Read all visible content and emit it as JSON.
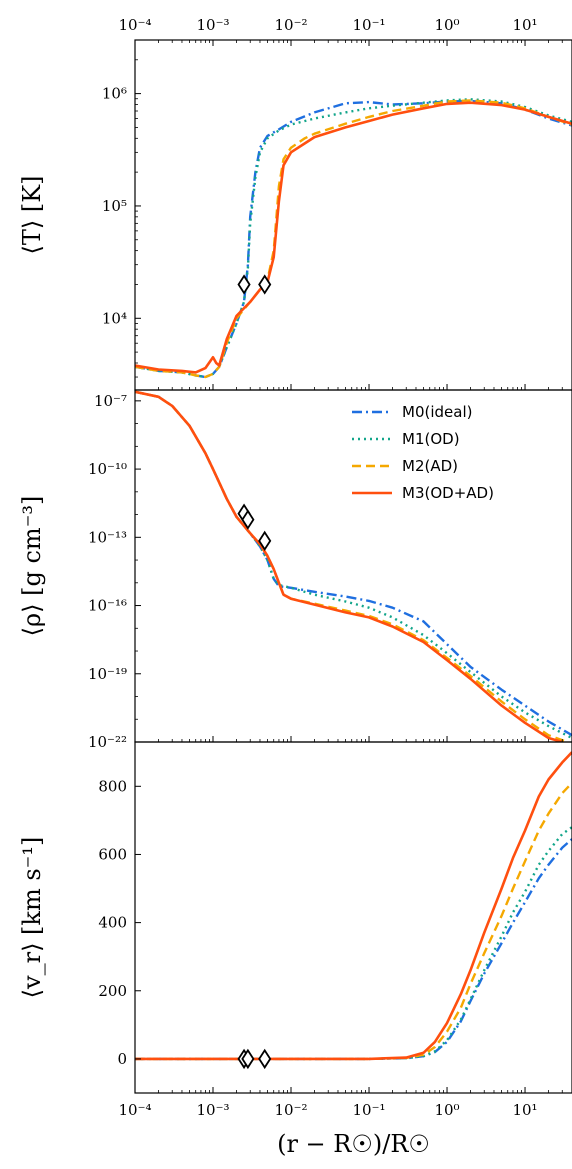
{
  "figure": {
    "xlabel": "(r − R☉)/R☉",
    "legend": {
      "placement": "upper-right of middle panel",
      "entries": [
        "M0(ideal)",
        "M1(OD)",
        "M2(AD)",
        "M3(OD+AD)"
      ]
    }
  },
  "chart_data": [
    {
      "type": "line",
      "panel": "temperature",
      "ylabel": "⟨T⟩ [K]",
      "xscale": "log",
      "yscale": "log",
      "xlim": [
        0.0001,
        40
      ],
      "ylim": [
        2300,
        3000000
      ],
      "xticks": [
        "10⁻⁴",
        "10⁻³",
        "10⁻²",
        "10⁻¹",
        "10⁰",
        "10¹"
      ],
      "yticks": [
        "10⁴",
        "10⁵",
        "10⁶"
      ],
      "series": [
        {
          "name": "M0(ideal)",
          "color": "#1f6fe0",
          "style": "dashdot",
          "x": [
            0.0001,
            0.0002,
            0.0004,
            0.0006,
            0.0008,
            0.001,
            0.0012,
            0.0015,
            0.002,
            0.0025,
            0.0028,
            0.003,
            0.0035,
            0.004,
            0.005,
            0.007,
            0.01,
            0.02,
            0.05,
            0.1,
            0.2,
            0.5,
            1,
            2,
            5,
            10,
            20,
            40
          ],
          "y": [
            3700,
            3400,
            3300,
            3100,
            3000,
            3200,
            3700,
            5500,
            9000,
            14000,
            30000,
            80000,
            200000,
            330000,
            420000,
            480000,
            560000,
            680000,
            820000,
            840000,
            800000,
            820000,
            850000,
            860000,
            820000,
            720000,
            600000,
            520000
          ]
        },
        {
          "name": "M1(OD)",
          "color": "#12a58a",
          "style": "dotted",
          "x": [
            0.0001,
            0.0002,
            0.0004,
            0.0006,
            0.0008,
            0.001,
            0.0012,
            0.0015,
            0.002,
            0.0025,
            0.0028,
            0.003,
            0.0035,
            0.004,
            0.005,
            0.007,
            0.01,
            0.02,
            0.05,
            0.1,
            0.2,
            0.5,
            1,
            2,
            5,
            10,
            20,
            40
          ],
          "y": [
            3700,
            3400,
            3300,
            3100,
            3000,
            3200,
            3700,
            5500,
            9000,
            14000,
            28000,
            70000,
            180000,
            300000,
            400000,
            470000,
            530000,
            600000,
            680000,
            740000,
            780000,
            830000,
            870000,
            890000,
            850000,
            760000,
            640000,
            560000
          ]
        },
        {
          "name": "M2(AD)",
          "color": "#f5a800",
          "style": "dashed",
          "x": [
            0.0001,
            0.0002,
            0.0004,
            0.0006,
            0.0008,
            0.001,
            0.0012,
            0.0015,
            0.002,
            0.003,
            0.004,
            0.005,
            0.006,
            0.007,
            0.008,
            0.01,
            0.015,
            0.02,
            0.05,
            0.1,
            0.2,
            0.5,
            1,
            2,
            5,
            10,
            20,
            40
          ],
          "y": [
            3700,
            3400,
            3300,
            3100,
            3000,
            3200,
            3700,
            6000,
            10000,
            14000,
            18000,
            22000,
            40000,
            150000,
            260000,
            330000,
            400000,
            440000,
            540000,
            620000,
            700000,
            780000,
            850000,
            870000,
            830000,
            740000,
            620000,
            530000
          ]
        },
        {
          "name": "M3(OD+AD)",
          "color": "#ff4f0f",
          "style": "solid",
          "x": [
            0.0001,
            0.0002,
            0.0004,
            0.0006,
            0.0008,
            0.001,
            0.0011,
            0.0012,
            0.0015,
            0.002,
            0.003,
            0.004,
            0.005,
            0.006,
            0.007,
            0.008,
            0.01,
            0.015,
            0.02,
            0.05,
            0.1,
            0.2,
            0.5,
            1,
            2,
            5,
            10,
            20,
            40
          ],
          "y": [
            3800,
            3500,
            3400,
            3300,
            3600,
            4500,
            4000,
            3800,
            6500,
            10500,
            14000,
            18000,
            21000,
            35000,
            110000,
            230000,
            300000,
            360000,
            410000,
            500000,
            570000,
            650000,
            740000,
            810000,
            830000,
            790000,
            720000,
            620000,
            540000
          ]
        }
      ],
      "markers": {
        "shape": "diamond",
        "x": [
          0.0025,
          0.0046
        ],
        "y": [
          20000,
          20000
        ]
      }
    },
    {
      "type": "line",
      "panel": "density",
      "ylabel": "⟨ρ⟩ [g cm⁻³]",
      "xscale": "log",
      "yscale": "log",
      "xlim": [
        0.0001,
        40
      ],
      "ylim": [
        1e-22,
        3e-07
      ],
      "yticks": [
        "10⁻⁷",
        "10⁻¹⁰",
        "10⁻¹³",
        "10⁻¹⁶",
        "10⁻¹⁹",
        "10⁻²²"
      ],
      "series": [
        {
          "name": "M0(ideal)",
          "color": "#1f6fe0",
          "style": "dashdot",
          "x": [
            0.0001,
            0.0002,
            0.0003,
            0.0005,
            0.0008,
            0.001,
            0.0015,
            0.002,
            0.003,
            0.004,
            0.005,
            0.006,
            0.007,
            0.01,
            0.02,
            0.05,
            0.1,
            0.2,
            0.5,
            1,
            2,
            5,
            10,
            20,
            40
          ],
          "y": [
            2.5e-07,
            1.5e-07,
            6e-08,
            8e-09,
            5e-10,
            1e-10,
            5e-12,
            8e-13,
            1.5e-13,
            4e-14,
            1e-14,
            1.5e-15,
            7e-16,
            6e-16,
            4e-16,
            2.5e-16,
            1.6e-16,
            8e-17,
            2e-17,
            2e-18,
            2e-19,
            2e-20,
            4e-21,
            8e-22,
            2e-22
          ]
        },
        {
          "name": "M1(OD)",
          "color": "#12a58a",
          "style": "dotted",
          "x": [
            0.0001,
            0.0002,
            0.0003,
            0.0005,
            0.0008,
            0.001,
            0.0015,
            0.002,
            0.003,
            0.004,
            0.005,
            0.006,
            0.007,
            0.01,
            0.02,
            0.05,
            0.1,
            0.2,
            0.5,
            1,
            2,
            5,
            10,
            20,
            40
          ],
          "y": [
            2.5e-07,
            1.5e-07,
            6e-08,
            8e-09,
            5e-10,
            1e-10,
            5e-12,
            8e-13,
            1.5e-13,
            4e-14,
            1e-14,
            1.5e-15,
            8e-16,
            6e-16,
            3e-16,
            1.5e-16,
            8e-17,
            3e-17,
            5e-18,
            8e-19,
            1.2e-19,
            1e-20,
            2e-21,
            5e-22,
            1.5e-22
          ]
        },
        {
          "name": "M2(AD)",
          "color": "#f5a800",
          "style": "dashed",
          "x": [
            0.0001,
            0.0002,
            0.0003,
            0.0005,
            0.0008,
            0.001,
            0.0015,
            0.002,
            0.003,
            0.004,
            0.005,
            0.006,
            0.007,
            0.008,
            0.01,
            0.02,
            0.05,
            0.1,
            0.2,
            0.5,
            1,
            2,
            5,
            10,
            20,
            35
          ],
          "y": [
            2.5e-07,
            1.5e-07,
            6e-08,
            8e-09,
            5e-10,
            1e-10,
            5e-12,
            8e-13,
            1.5e-13,
            5e-14,
            1.5e-14,
            4e-15,
            1e-15,
            3e-16,
            2e-16,
            1.2e-16,
            6e-17,
            3.5e-17,
            1.5e-17,
            3e-18,
            5e-19,
            8e-20,
            6e-21,
            1e-21,
            2e-22,
            1e-22
          ]
        },
        {
          "name": "M3(OD+AD)",
          "color": "#ff4f0f",
          "style": "solid",
          "x": [
            0.0001,
            0.0002,
            0.0003,
            0.0005,
            0.0008,
            0.001,
            0.0015,
            0.002,
            0.003,
            0.004,
            0.005,
            0.006,
            0.007,
            0.008,
            0.01,
            0.02,
            0.05,
            0.1,
            0.2,
            0.5,
            1,
            2,
            5,
            10,
            20,
            30
          ],
          "y": [
            2.5e-07,
            1.5e-07,
            6e-08,
            8e-09,
            5e-10,
            1e-10,
            5e-12,
            8e-13,
            1.5e-13,
            5e-14,
            1.5e-14,
            4e-15,
            1e-15,
            3e-16,
            2e-16,
            1.1e-16,
            5e-17,
            3e-17,
            1.2e-17,
            2.5e-18,
            4e-19,
            6e-20,
            4e-21,
            7e-22,
            1.5e-22,
            1e-22
          ]
        }
      ],
      "markers": {
        "shape": "diamond",
        "x": [
          0.0025,
          0.0028,
          0.0046
        ],
        "y": [
          1.1e-12,
          6e-13,
          7e-14
        ]
      }
    },
    {
      "type": "line",
      "panel": "velocity",
      "ylabel": "⟨v_r⟩ [km s⁻¹]",
      "xscale": "log",
      "yscale": "linear",
      "xlim": [
        0.0001,
        40
      ],
      "ylim": [
        -100,
        930
      ],
      "yticks": [
        "0",
        "200",
        "400",
        "600",
        "800"
      ],
      "series": [
        {
          "name": "M0(ideal)",
          "color": "#1f6fe0",
          "style": "dashdot",
          "x": [
            0.0001,
            0.01,
            0.1,
            0.3,
            0.5,
            0.7,
            1,
            1.5,
            2,
            3,
            5,
            7,
            10,
            15,
            20,
            30,
            40
          ],
          "y": [
            0,
            0,
            0,
            2,
            8,
            20,
            50,
            110,
            170,
            250,
            340,
            400,
            460,
            530,
            570,
            620,
            645
          ]
        },
        {
          "name": "M1(OD)",
          "color": "#12a58a",
          "style": "dotted",
          "x": [
            0.0001,
            0.01,
            0.1,
            0.3,
            0.5,
            0.7,
            1,
            1.5,
            2,
            3,
            5,
            7,
            10,
            15,
            20,
            30,
            40
          ],
          "y": [
            0,
            0,
            0,
            2,
            8,
            22,
            55,
            115,
            175,
            260,
            360,
            430,
            490,
            570,
            610,
            660,
            680
          ]
        },
        {
          "name": "M2(AD)",
          "color": "#f5a800",
          "style": "dashed",
          "x": [
            0.0001,
            0.01,
            0.1,
            0.3,
            0.5,
            0.7,
            1,
            1.5,
            2,
            3,
            5,
            7,
            10,
            15,
            20,
            30,
            40
          ],
          "y": [
            0,
            0,
            0,
            3,
            12,
            35,
            80,
            150,
            220,
            310,
            420,
            500,
            580,
            670,
            720,
            780,
            810
          ]
        },
        {
          "name": "M3(OD+AD)",
          "color": "#ff4f0f",
          "style": "solid",
          "x": [
            0.0001,
            0.01,
            0.1,
            0.3,
            0.5,
            0.7,
            1,
            1.5,
            2,
            3,
            5,
            7,
            10,
            15,
            20,
            30,
            40
          ],
          "y": [
            0,
            0,
            0,
            4,
            18,
            50,
            105,
            190,
            260,
            370,
            500,
            590,
            670,
            770,
            820,
            870,
            900
          ]
        }
      ],
      "markers": {
        "shape": "diamond",
        "x": [
          0.0025,
          0.0028,
          0.0046
        ],
        "y": [
          0,
          0,
          0
        ]
      }
    }
  ]
}
